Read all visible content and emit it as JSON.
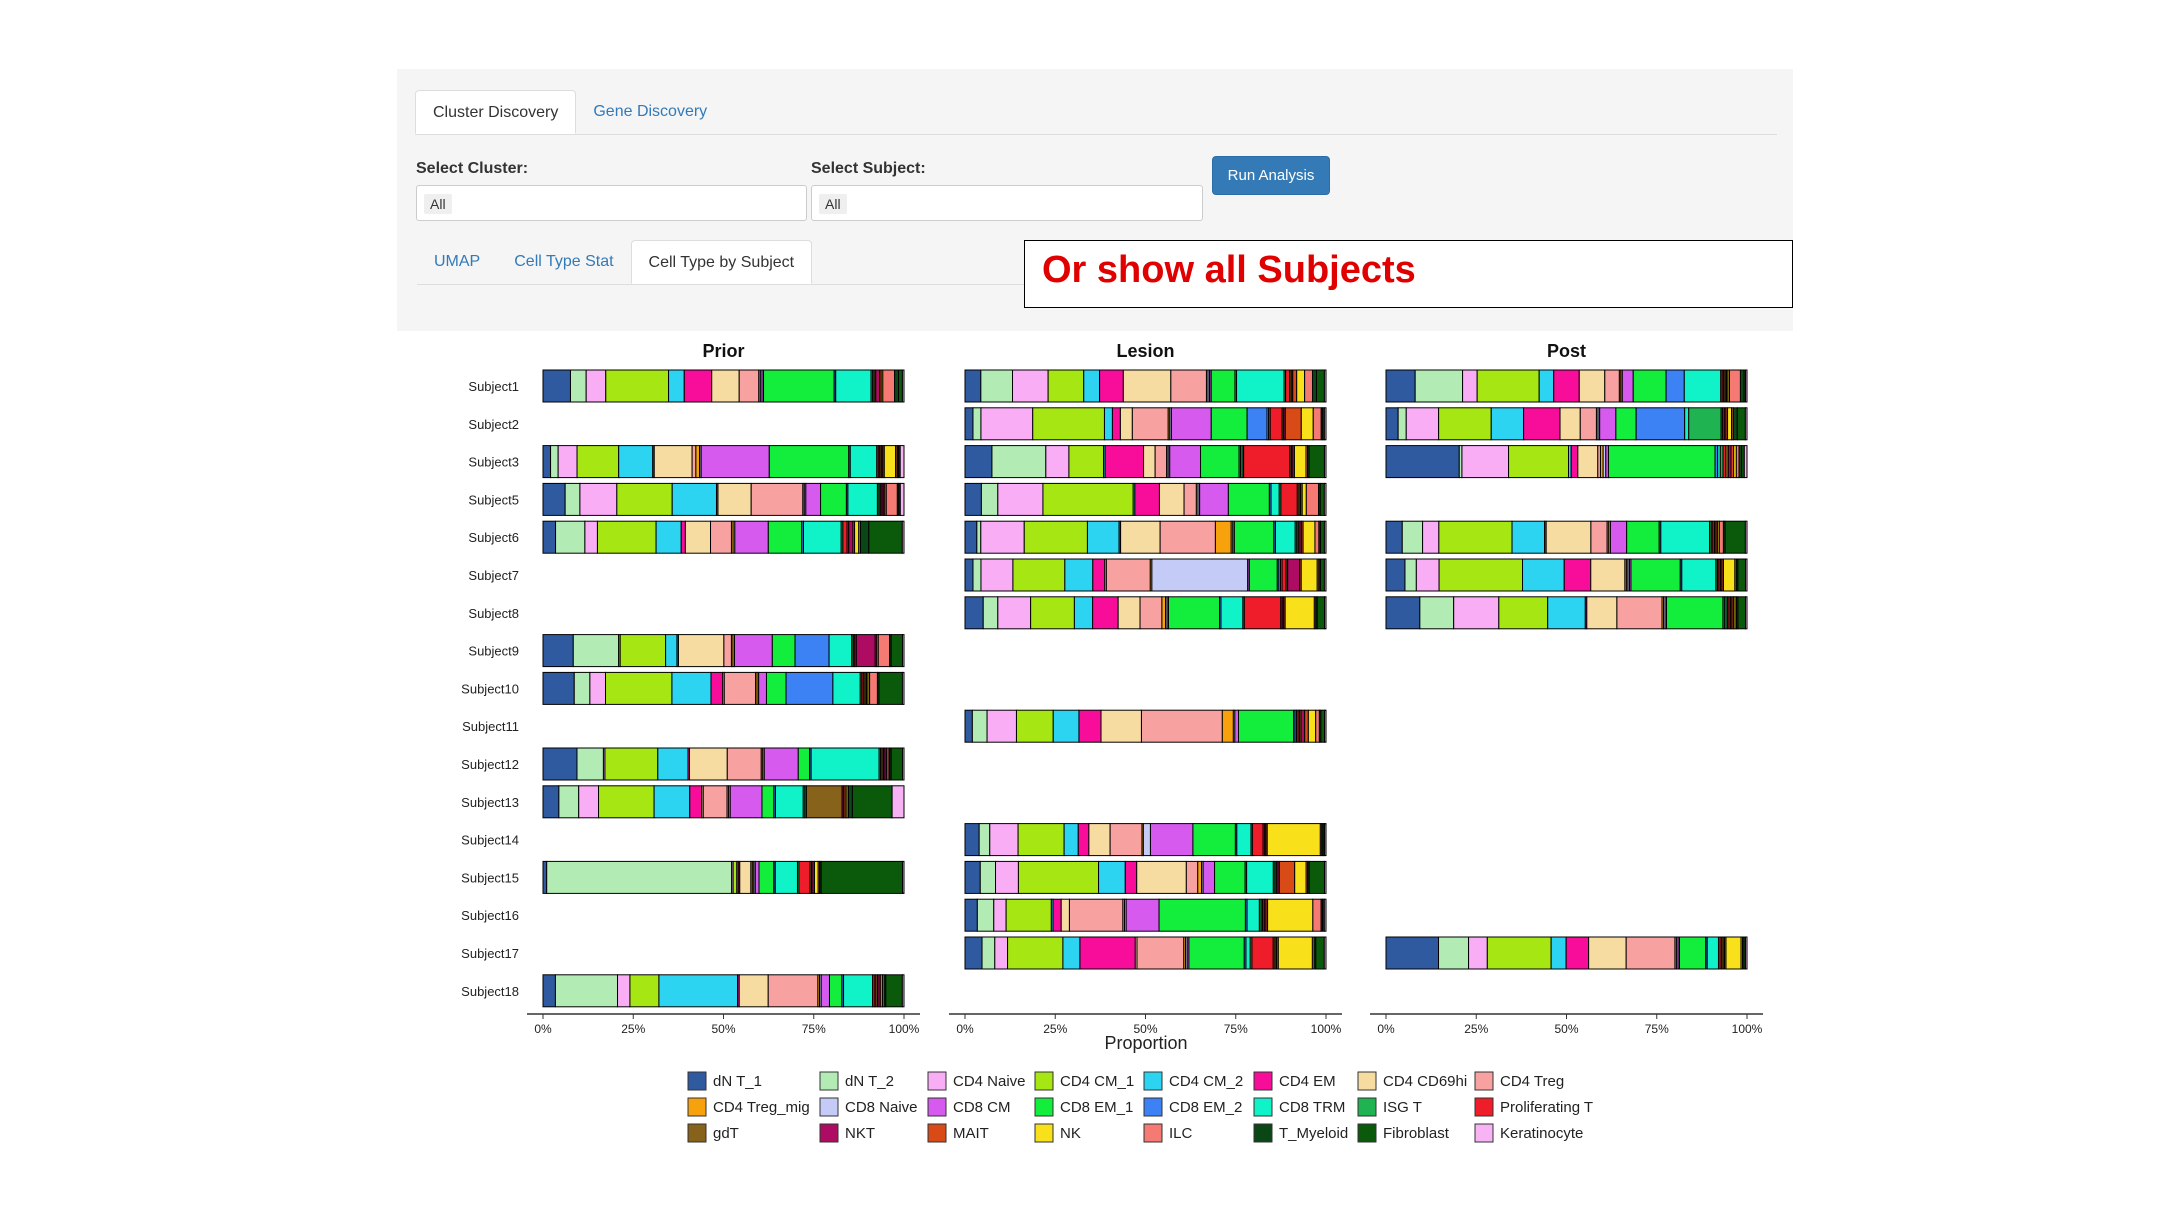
{
  "top_tabs": [
    {
      "label": "Cluster Discovery",
      "active": true
    },
    {
      "label": "Gene Discovery",
      "active": false
    }
  ],
  "controls": {
    "cluster_label": "Select Cluster:",
    "cluster_value": "All",
    "subject_label": "Select Subject:",
    "subject_value": "All",
    "run_button": "Run Analysis"
  },
  "sub_tabs": [
    {
      "label": "UMAP",
      "active": false
    },
    {
      "label": "Cell Type Stat",
      "active": false
    },
    {
      "label": "Cell Type by Subject",
      "active": true
    }
  ],
  "annotation": "Or show all Subjects",
  "chart_data": {
    "type": "bar",
    "orientation": "horizontal",
    "stacked": true,
    "normalized": true,
    "xlabel": "Proportion",
    "x_ticks": [
      "0%",
      "25%",
      "50%",
      "75%",
      "100%"
    ],
    "xlim": [
      0,
      1
    ],
    "panels": [
      "Prior",
      "Lesion",
      "Post"
    ],
    "subjects": [
      "Subject1",
      "Subject2",
      "Subject3",
      "Subject5",
      "Subject6",
      "Subject7",
      "Subject8",
      "Subject9",
      "Subject10",
      "Subject11",
      "Subject12",
      "Subject13",
      "Subject14",
      "Subject15",
      "Subject16",
      "Subject17",
      "Subject18"
    ],
    "legend_position": "bottom",
    "cell_types": [
      {
        "name": "dN T_1",
        "color": "#2f5aa0"
      },
      {
        "name": "dN T_2",
        "color": "#b3ebb5"
      },
      {
        "name": "CD4 Naive",
        "color": "#f8adf5"
      },
      {
        "name": "CD4 CM_1",
        "color": "#a6e612"
      },
      {
        "name": "CD4 CM_2",
        "color": "#2dd4f2"
      },
      {
        "name": "CD4 EM",
        "color": "#f70d9a"
      },
      {
        "name": "CD4 CD69hi",
        "color": "#f7dca2"
      },
      {
        "name": "CD4 Treg",
        "color": "#f7a1a1"
      },
      {
        "name": "CD4 Treg_mig",
        "color": "#f7a20d"
      },
      {
        "name": "CD8 Naive",
        "color": "#c4cbf7"
      },
      {
        "name": "CD8 CM",
        "color": "#d65aee"
      },
      {
        "name": "CD8 EM_1",
        "color": "#13ee3c"
      },
      {
        "name": "CD8 EM_2",
        "color": "#3c82f4"
      },
      {
        "name": "CD8 TRM",
        "color": "#10f2c7"
      },
      {
        "name": "ISG T",
        "color": "#1fb352"
      },
      {
        "name": "Proliferating T",
        "color": "#ef1d2a"
      },
      {
        "name": "gdT",
        "color": "#86621a"
      },
      {
        "name": "NKT",
        "color": "#ad0c62"
      },
      {
        "name": "MAIT",
        "color": "#d84a16"
      },
      {
        "name": "NK",
        "color": "#f8e11a"
      },
      {
        "name": "ILC",
        "color": "#f47a73"
      },
      {
        "name": "T_Myeloid",
        "color": "#0b4716"
      },
      {
        "name": "Fibroblast",
        "color": "#0b5a0b"
      },
      {
        "name": "Keratinocyte",
        "color": "#f8b3f4"
      }
    ],
    "data": {
      "Prior": {
        "Subject1": [
          0.07,
          0.04,
          0.05,
          0.16,
          0.04,
          0.07,
          0.07,
          0.05,
          0.004,
          0.004,
          0.004,
          0.18,
          0.004,
          0.09,
          0.004,
          0.004,
          0.004,
          0.01,
          0.004,
          0.004,
          0.03,
          0.01,
          0.01,
          0.004
        ],
        "Subject3": [
          0.02,
          0.02,
          0.05,
          0.11,
          0.09,
          0.004,
          0.1,
          0.01,
          0.01,
          0.004,
          0.18,
          0.21,
          0.004,
          0.07,
          0.004,
          0.004,
          0.004,
          0.004,
          0.004,
          0.03,
          0.004,
          0.004,
          0.004,
          0.01
        ],
        "Subject5": [
          0.06,
          0.04,
          0.1,
          0.15,
          0.12,
          0.004,
          0.09,
          0.14,
          0.004,
          0.004,
          0.04,
          0.07,
          0.004,
          0.08,
          0.004,
          0.004,
          0.004,
          0.004,
          0.004,
          0.004,
          0.03,
          0.004,
          0.004,
          0.01
        ],
        "Subject6": [
          0.03,
          0.07,
          0.03,
          0.14,
          0.06,
          0.01,
          0.06,
          0.05,
          0.004,
          0.004,
          0.08,
          0.08,
          0.004,
          0.09,
          0.004,
          0.01,
          0.004,
          0.01,
          0.004,
          0.01,
          0.004,
          0.02,
          0.08,
          0.004
        ],
        "Subject9": [
          0.08,
          0.12,
          0.004,
          0.12,
          0.03,
          0.004,
          0.12,
          0.02,
          0.004,
          0.004,
          0.1,
          0.06,
          0.09,
          0.06,
          0.004,
          0.004,
          0.004,
          0.05,
          0.004,
          0.004,
          0.03,
          0.004,
          0.03,
          0.004
        ],
        "Subject10": [
          0.08,
          0.04,
          0.04,
          0.17,
          0.1,
          0.03,
          0.004,
          0.08,
          0.004,
          0.004,
          0.02,
          0.05,
          0.12,
          0.07,
          0.004,
          0.004,
          0.004,
          0.004,
          0.004,
          0.004,
          0.02,
          0.004,
          0.06,
          0.004
        ],
        "Subject12": [
          0.09,
          0.07,
          0.004,
          0.14,
          0.08,
          0.004,
          0.1,
          0.09,
          0.004,
          0.004,
          0.09,
          0.03,
          0.004,
          0.18,
          0.004,
          0.004,
          0.004,
          0.004,
          0.004,
          0.004,
          0.004,
          0.004,
          0.03,
          0.004
        ],
        "Subject13": [
          0.04,
          0.05,
          0.05,
          0.14,
          0.09,
          0.03,
          0.004,
          0.06,
          0.004,
          0.004,
          0.08,
          0.03,
          0.004,
          0.07,
          0.004,
          0.004,
          0.09,
          0.004,
          0.004,
          0.004,
          0.004,
          0.01,
          0.1,
          0.03
        ],
        "Subject15": [
          0.01,
          0.5,
          0.004,
          0.01,
          0.004,
          0.004,
          0.03,
          0.004,
          0.004,
          0.004,
          0.01,
          0.04,
          0.004,
          0.06,
          0.004,
          0.03,
          0.004,
          0.004,
          0.004,
          0.01,
          0.004,
          0.004,
          0.22,
          0.004
        ],
        "Subject18": [
          0.03,
          0.15,
          0.03,
          0.07,
          0.19,
          0.004,
          0.07,
          0.12,
          0.004,
          0.004,
          0.02,
          0.03,
          0.004,
          0.07,
          0.004,
          0.004,
          0.004,
          0.004,
          0.004,
          0.004,
          0.004,
          0.004,
          0.04,
          0.004
        ]
      },
      "Lesion": {
        "Subject1": [
          0.04,
          0.08,
          0.09,
          0.09,
          0.04,
          0.06,
          0.12,
          0.09,
          0.004,
          0.004,
          0.004,
          0.06,
          0.004,
          0.12,
          0.004,
          0.01,
          0.004,
          0.004,
          0.01,
          0.02,
          0.02,
          0.01,
          0.02,
          0.004
        ],
        "Subject2": [
          0.02,
          0.02,
          0.13,
          0.18,
          0.02,
          0.02,
          0.03,
          0.09,
          0.004,
          0.004,
          0.1,
          0.09,
          0.05,
          0.004,
          0.004,
          0.03,
          0.004,
          0.004,
          0.04,
          0.03,
          0.02,
          0.004,
          0.004,
          0.004
        ],
        "Subject3": [
          0.07,
          0.14,
          0.06,
          0.09,
          0.004,
          0.1,
          0.03,
          0.03,
          0.004,
          0.004,
          0.08,
          0.1,
          0.004,
          0.004,
          0.004,
          0.12,
          0.004,
          0.004,
          0.004,
          0.03,
          0.004,
          0.004,
          0.04,
          0.004
        ],
        "Subject5": [
          0.04,
          0.04,
          0.11,
          0.22,
          0.004,
          0.06,
          0.06,
          0.03,
          0.004,
          0.004,
          0.07,
          0.1,
          0.004,
          0.02,
          0.004,
          0.04,
          0.004,
          0.004,
          0.004,
          0.01,
          0.03,
          0.004,
          0.01,
          0.004
        ],
        "Subject6": [
          0.03,
          0.01,
          0.11,
          0.16,
          0.08,
          0.004,
          0.1,
          0.14,
          0.04,
          0.004,
          0.004,
          0.1,
          0.004,
          0.05,
          0.004,
          0.004,
          0.004,
          0.004,
          0.004,
          0.03,
          0.01,
          0.004,
          0.01,
          0.004
        ],
        "Subject7": [
          0.02,
          0.02,
          0.08,
          0.13,
          0.07,
          0.03,
          0.004,
          0.11,
          0.004,
          0.24,
          0.004,
          0.07,
          0.004,
          0.004,
          0.004,
          0.01,
          0.004,
          0.03,
          0.004,
          0.04,
          0.004,
          0.004,
          0.01,
          0.004
        ],
        "Subject8": [
          0.05,
          0.04,
          0.09,
          0.12,
          0.05,
          0.07,
          0.06,
          0.06,
          0.01,
          0.004,
          0.004,
          0.14,
          0.004,
          0.06,
          0.004,
          0.1,
          0.004,
          0.004,
          0.004,
          0.08,
          0.004,
          0.004,
          0.02,
          0.004
        ],
        "Subject11": [
          0.02,
          0.04,
          0.08,
          0.1,
          0.07,
          0.06,
          0.11,
          0.22,
          0.03,
          0.004,
          0.01,
          0.15,
          0.004,
          0.004,
          0.004,
          0.004,
          0.004,
          0.01,
          0.01,
          0.02,
          0.01,
          0.004,
          0.01,
          0.004
        ],
        "Subject14": [
          0.04,
          0.03,
          0.08,
          0.13,
          0.04,
          0.03,
          0.06,
          0.09,
          0.004,
          0.02,
          0.12,
          0.12,
          0.004,
          0.04,
          0.004,
          0.03,
          0.004,
          0.004,
          0.004,
          0.15,
          0.004,
          0.004,
          0.004,
          0.004
        ],
        "Subject15": [
          0.04,
          0.04,
          0.06,
          0.21,
          0.07,
          0.03,
          0.13,
          0.03,
          0.01,
          0.004,
          0.03,
          0.08,
          0.004,
          0.07,
          0.004,
          0.004,
          0.004,
          0.004,
          0.04,
          0.03,
          0.004,
          0.004,
          0.04,
          0.004
        ],
        "Subject16": [
          0.03,
          0.04,
          0.03,
          0.11,
          0.004,
          0.02,
          0.02,
          0.13,
          0.004,
          0.004,
          0.08,
          0.21,
          0.004,
          0.03,
          0.004,
          0.004,
          0.004,
          0.004,
          0.004,
          0.11,
          0.02,
          0.004,
          0.004,
          0.004
        ],
        "Subject17": [
          0.04,
          0.03,
          0.03,
          0.13,
          0.04,
          0.13,
          0.004,
          0.11,
          0.004,
          0.004,
          0.004,
          0.13,
          0.004,
          0.01,
          0.004,
          0.05,
          0.004,
          0.004,
          0.004,
          0.08,
          0.004,
          0.004,
          0.02,
          0.004
        ]
      },
      "Post": {
        "Subject1": [
          0.08,
          0.13,
          0.04,
          0.17,
          0.04,
          0.07,
          0.07,
          0.04,
          0.004,
          0.004,
          0.03,
          0.09,
          0.05,
          0.1,
          0.004,
          0.004,
          0.004,
          0.004,
          0.004,
          0.004,
          0.03,
          0.01,
          0.004,
          0.004
        ],
        "Subject2": [
          0.03,
          0.02,
          0.08,
          0.13,
          0.08,
          0.09,
          0.05,
          0.04,
          0.004,
          0.004,
          0.04,
          0.05,
          0.12,
          0.01,
          0.08,
          0.004,
          0.004,
          0.004,
          0.004,
          0.01,
          0.004,
          0.01,
          0.02,
          0.004
        ],
        "Subject3": [
          0.11,
          0.004,
          0.07,
          0.09,
          0.004,
          0.01,
          0.03,
          0.004,
          0.004,
          0.004,
          0.004,
          0.16,
          0.004,
          0.004,
          0.004,
          0.004,
          0.004,
          0.004,
          0.004,
          0.004,
          0.004,
          0.004,
          0.004,
          0.004
        ],
        "Subject6": [
          0.04,
          0.05,
          0.04,
          0.18,
          0.08,
          0.004,
          0.11,
          0.04,
          0.004,
          0.004,
          0.04,
          0.08,
          0.004,
          0.12,
          0.004,
          0.004,
          0.004,
          0.004,
          0.004,
          0.004,
          0.01,
          0.004,
          0.05,
          0.004
        ],
        "Subject7": [
          0.05,
          0.03,
          0.06,
          0.22,
          0.11,
          0.07,
          0.09,
          0.004,
          0.004,
          0.004,
          0.004,
          0.13,
          0.004,
          0.09,
          0.004,
          0.004,
          0.004,
          0.004,
          0.004,
          0.03,
          0.004,
          0.004,
          0.02,
          0.004
        ],
        "Subject8": [
          0.09,
          0.09,
          0.12,
          0.13,
          0.1,
          0.004,
          0.08,
          0.12,
          0.004,
          0.004,
          0.004,
          0.15,
          0.004,
          0.004,
          0.004,
          0.004,
          0.004,
          0.004,
          0.004,
          0.004,
          0.004,
          0.004,
          0.02,
          0.004
        ],
        "Subject17": [
          0.14,
          0.08,
          0.05,
          0.17,
          0.04,
          0.06,
          0.1,
          0.13,
          0.004,
          0.004,
          0.004,
          0.07,
          0.004,
          0.03,
          0.004,
          0.004,
          0.004,
          0.004,
          0.004,
          0.04,
          0.004,
          0.004,
          0.004,
          0.004
        ]
      }
    }
  }
}
